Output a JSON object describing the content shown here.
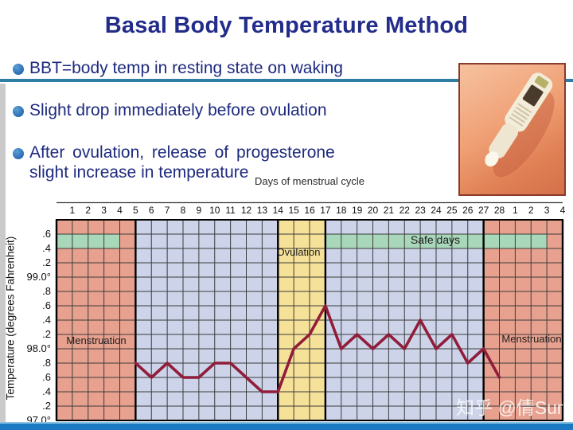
{
  "slide": {
    "title": "Basal Body Temperature Method",
    "bullets": [
      {
        "line1": "BBT=body temp in resting state on waking"
      },
      {
        "line1": "Slight drop immediately before ovulation"
      },
      {
        "line1": "After ovulation, release of progesterone",
        "line2": "slight increase in temperature"
      }
    ],
    "watermark": "知乎 @倩Sur"
  },
  "colors": {
    "title_navy": "#232c8a",
    "bullet_text_navy": "#1e2a7e",
    "bullet_dot_blue": "#2b6cb2",
    "divider_teal": "#2e7da4",
    "bottom_bar_blue": "#1a79c1",
    "menstruation_pink": "#e7a18e",
    "cycle_blue": "#cdd4ea",
    "ovulation_yellow": "#f6e198",
    "safe_days_green": "#a9d7ba",
    "curve_maroon": "#911d3a",
    "grid_line": "#3c3c3c",
    "photo_border": "#8a3a2a"
  },
  "chart_data": {
    "type": "line",
    "title_above": "Days of menstrual cycle",
    "y_axis_title": "Temperature (degrees Fahrenheit)",
    "day_labels": [
      "1",
      "2",
      "3",
      "4",
      "5",
      "6",
      "7",
      "8",
      "9",
      "10",
      "11",
      "12",
      "13",
      "14",
      "15",
      "16",
      "17",
      "18",
      "19",
      "20",
      "21",
      "22",
      "23",
      "24",
      "25",
      "26",
      "27",
      "28",
      "1",
      "2",
      "3",
      "4"
    ],
    "y_tick_labels": [
      ".6",
      ".4",
      ".2",
      "99.0°",
      ".8",
      ".6",
      ".4",
      ".2",
      "98.0°",
      ".8",
      ".6",
      ".4",
      ".2",
      "97.0°"
    ],
    "y_range": [
      97.0,
      99.8
    ],
    "y_step_per_row": 0.2,
    "grid": {
      "columns": 32,
      "rows": 14
    },
    "regions": [
      {
        "name": "menstruation",
        "from_day_line": 0,
        "to_day_line": 5,
        "fill": "menstruation_pink"
      },
      {
        "name": "pre-ovulation",
        "from_day_line": 5,
        "to_day_line": 14,
        "fill": "cycle_blue"
      },
      {
        "name": "ovulation-window",
        "from_day_line": 14,
        "to_day_line": 17,
        "fill": "ovulation_yellow"
      },
      {
        "name": "post-ovulation",
        "from_day_line": 17,
        "to_day_line": 27,
        "fill": "cycle_blue"
      },
      {
        "name": "menstruation-next",
        "from_day_line": 27,
        "to_day_line": 32,
        "fill": "menstruation_pink"
      }
    ],
    "safe_day_bands": [
      {
        "from_day_line": 0,
        "to_day_line": 4
      },
      {
        "from_day_line": 17,
        "to_day_line": 31
      }
    ],
    "thick_day_lines": [
      0,
      5,
      14,
      17,
      27,
      32
    ],
    "temperature_points": [
      [
        5,
        97.8
      ],
      [
        6,
        97.6
      ],
      [
        7,
        97.8
      ],
      [
        8,
        97.6
      ],
      [
        9,
        97.6
      ],
      [
        10,
        97.8
      ],
      [
        11,
        97.8
      ],
      [
        12,
        97.6
      ],
      [
        13,
        97.4
      ],
      [
        14,
        97.4
      ],
      [
        15,
        98.0
      ],
      [
        16,
        98.2
      ],
      [
        17,
        98.6
      ],
      [
        18,
        98.0
      ],
      [
        19,
        98.2
      ],
      [
        20,
        98.0
      ],
      [
        21,
        98.2
      ],
      [
        22,
        98.0
      ],
      [
        23,
        98.4
      ],
      [
        24,
        98.0
      ],
      [
        25,
        98.2
      ],
      [
        26,
        97.8
      ],
      [
        27,
        98.0
      ],
      [
        28,
        97.6
      ]
    ],
    "labels": {
      "menstruation_left": "Menstruation",
      "ovulation": "Ovulation",
      "safe_days": "Safe days",
      "menstruation_right": "Menstruation"
    }
  }
}
